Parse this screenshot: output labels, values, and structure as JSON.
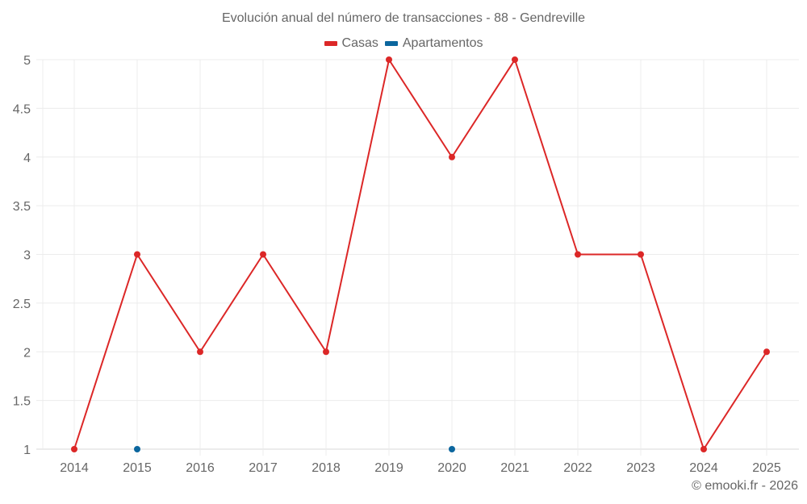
{
  "chart": {
    "title": "Evolución anual del número de transacciones - 88 - Gendreville",
    "credit": "© emooki.fr - 2026",
    "legend": [
      {
        "label": "Casas",
        "color": "#dc2727"
      },
      {
        "label": "Apartamentos",
        "color": "#0b669e"
      }
    ]
  },
  "chart_data": {
    "type": "line",
    "title": "Evolución anual del número de transacciones - 88 - Gendreville",
    "xlabel": "",
    "ylabel": "",
    "categories": [
      "2014",
      "2015",
      "2016",
      "2017",
      "2018",
      "2019",
      "2020",
      "2021",
      "2022",
      "2023",
      "2024",
      "2025"
    ],
    "series": [
      {
        "name": "Casas",
        "color": "#dc2727",
        "values": [
          1,
          3,
          2,
          3,
          2,
          5,
          4,
          5,
          3,
          3,
          1,
          2
        ]
      },
      {
        "name": "Apartamentos",
        "color": "#0b669e",
        "values": [
          null,
          1,
          null,
          null,
          null,
          null,
          1,
          null,
          null,
          null,
          null,
          null
        ]
      }
    ],
    "yticks": [
      "1",
      "1.5",
      "2",
      "2.5",
      "3",
      "3.5",
      "4",
      "4.5",
      "5"
    ],
    "ylim": [
      1,
      5
    ],
    "grid": true,
    "legend_position": "top"
  }
}
